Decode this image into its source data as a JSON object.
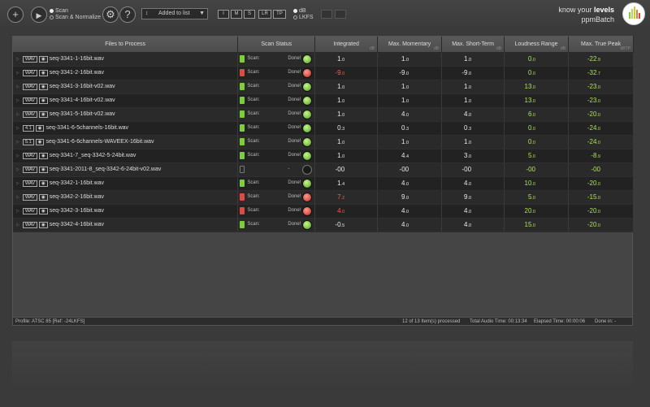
{
  "toolbar": {
    "add_icon": "plus-icon",
    "play_icon": "play-icon",
    "scan_options": [
      {
        "label": "Scan",
        "selected": true
      },
      {
        "label": "Scan & Normalize",
        "selected": false
      }
    ],
    "settings_icon": "gear-icon",
    "help_icon": "question-icon",
    "combo_value": "Added to list",
    "meter_buttons": [
      "I",
      "M",
      "S",
      "LR",
      "TP"
    ],
    "unit_options": [
      {
        "label": "dB",
        "selected": true
      },
      {
        "label": "LKFS",
        "selected": false
      }
    ],
    "brand_tagline_prefix": "know your",
    "brand_tagline_bold": "levels",
    "brand_name": "ppmBatch"
  },
  "table": {
    "headers": [
      {
        "label": "Files to Process",
        "unit": ""
      },
      {
        "label": "Scan Status",
        "unit": ""
      },
      {
        "label": "Integrated",
        "unit": "dB"
      },
      {
        "label": "Max. Momentary",
        "unit": "dB"
      },
      {
        "label": "Max. Short-Term",
        "unit": "dB"
      },
      {
        "label": "Loudness Range",
        "unit": "dB"
      },
      {
        "label": "Max. True Peak",
        "unit": "dBTP"
      }
    ],
    "rows": [
      {
        "fmt": "WAV",
        "file": "seq-3341-1-16bit.wav",
        "scan": "Scan:",
        "done": "Done!",
        "status": "green",
        "doc": "green",
        "integrated": [
          "1",
          ".0"
        ],
        "momentary": [
          "1",
          ".0"
        ],
        "shortterm": [
          "1",
          ".0"
        ],
        "range": [
          "0",
          ".0"
        ],
        "peak": [
          "-22",
          ".9"
        ],
        "c_int": "#e8e8e8"
      },
      {
        "fmt": "WAV",
        "file": "seq-3341-2-16bit.wav",
        "scan": "Scan:",
        "done": "Done!",
        "status": "red",
        "doc": "red",
        "integrated": [
          "-9",
          ".0"
        ],
        "momentary": [
          "-9",
          ".0"
        ],
        "shortterm": [
          "-9",
          ".0"
        ],
        "range": [
          "0",
          ".0"
        ],
        "peak": [
          "-32",
          ".7"
        ],
        "c_int": "#ff5a4a"
      },
      {
        "fmt": "WAV",
        "file": "seq-3341-3-16bit-v02.wav",
        "scan": "Scan:",
        "done": "Done!",
        "status": "green",
        "doc": "green",
        "integrated": [
          "1",
          ".0"
        ],
        "momentary": [
          "1",
          ".0"
        ],
        "shortterm": [
          "1",
          ".0"
        ],
        "range": [
          "13",
          ".0"
        ],
        "peak": [
          "-23",
          ".0"
        ],
        "c_int": "#e8e8e8"
      },
      {
        "fmt": "WAV",
        "file": "seq-3341-4-16bit-v02.wav",
        "scan": "Scan:",
        "done": "Done!",
        "status": "green",
        "doc": "green",
        "integrated": [
          "1",
          ".0"
        ],
        "momentary": [
          "1",
          ".0"
        ],
        "shortterm": [
          "1",
          ".0"
        ],
        "range": [
          "13",
          ".0"
        ],
        "peak": [
          "-23",
          ".0"
        ],
        "c_int": "#e8e8e8"
      },
      {
        "fmt": "WAV",
        "file": "seq-3341-5-16bit-v02.wav",
        "scan": "Scan:",
        "done": "Done!",
        "status": "green",
        "doc": "green",
        "integrated": [
          "1",
          ".0"
        ],
        "momentary": [
          "4",
          ".0"
        ],
        "shortterm": [
          "4",
          ".0"
        ],
        "range": [
          "6",
          ".0"
        ],
        "peak": [
          "-20",
          ".0"
        ],
        "c_int": "#e8e8e8"
      },
      {
        "fmt": "4.1",
        "file": "seq-3341-6-5channels-16bit.wav",
        "scan": "Scan:",
        "done": "Done!",
        "status": "green",
        "doc": "green",
        "integrated": [
          "0",
          ".3"
        ],
        "momentary": [
          "0",
          ".3"
        ],
        "shortterm": [
          "0",
          ".3"
        ],
        "range": [
          "0",
          ".0"
        ],
        "peak": [
          "-24",
          ".0"
        ],
        "c_int": "#e8e8e8"
      },
      {
        "fmt": "5.1",
        "file": "seq-3341-6-6channels-WAVEEX-16bit.wav",
        "scan": "Scan:",
        "done": "Done!",
        "status": "green",
        "doc": "green",
        "integrated": [
          "1",
          ".0"
        ],
        "momentary": [
          "1",
          ".0"
        ],
        "shortterm": [
          "1",
          ".0"
        ],
        "range": [
          "0",
          ".0"
        ],
        "peak": [
          "-24",
          ".0"
        ],
        "c_int": "#e8e8e8"
      },
      {
        "fmt": "WAV",
        "file": "seq-3341-7_seq-3342-5-24bit.wav",
        "scan": "Scan:",
        "done": "Done!",
        "status": "green",
        "doc": "green",
        "integrated": [
          "1",
          ".0"
        ],
        "momentary": [
          "4",
          ".4"
        ],
        "shortterm": [
          "3",
          ".0"
        ],
        "range": [
          "5",
          ".0"
        ],
        "peak": [
          "-8",
          ".9"
        ],
        "c_int": "#e8e8e8"
      },
      {
        "fmt": "WAV",
        "file": "seq-3341-2011-8_seq-3342-6-24bit-v02.wav",
        "scan": "",
        "done": "-",
        "status": "none",
        "doc": "none",
        "integrated": [
          "-00",
          ""
        ],
        "momentary": [
          "-00",
          ""
        ],
        "shortterm": [
          "-00",
          ""
        ],
        "range": [
          "-00",
          ""
        ],
        "peak": [
          "-00",
          ""
        ],
        "c_int": "#e8e8e8"
      },
      {
        "fmt": "WAV",
        "file": "seq-3342-1-16bit.wav",
        "scan": "Scan:",
        "done": "Done!",
        "status": "green",
        "doc": "green",
        "integrated": [
          "1",
          ".4"
        ],
        "momentary": [
          "4",
          ".0"
        ],
        "shortterm": [
          "4",
          ".0"
        ],
        "range": [
          "10",
          ".0"
        ],
        "peak": [
          "-20",
          ".0"
        ],
        "c_int": "#e8e8e8"
      },
      {
        "fmt": "WAV",
        "file": "seq-3342-2-16bit.wav",
        "scan": "Scan:",
        "done": "Done!",
        "status": "red",
        "doc": "red",
        "integrated": [
          "7",
          ".2"
        ],
        "momentary": [
          "9",
          ".0"
        ],
        "shortterm": [
          "9",
          ".0"
        ],
        "range": [
          "5",
          ".0"
        ],
        "peak": [
          "-15",
          ".0"
        ],
        "c_int": "#ff5a4a"
      },
      {
        "fmt": "WAV",
        "file": "seq-3342-3-16bit.wav",
        "scan": "Scan:",
        "done": "Done!",
        "status": "red",
        "doc": "red",
        "integrated": [
          "4",
          ".0"
        ],
        "momentary": [
          "4",
          ".0"
        ],
        "shortterm": [
          "4",
          ".0"
        ],
        "range": [
          "20",
          ".0"
        ],
        "peak": [
          "-20",
          ".0"
        ],
        "c_int": "#ff5a4a"
      },
      {
        "fmt": "WAV",
        "file": "seq-3342-4-16bit.wav",
        "scan": "Scan:",
        "done": "Done!",
        "status": "green",
        "doc": "green",
        "integrated": [
          "-0",
          ".5"
        ],
        "momentary": [
          "4",
          ".0"
        ],
        "shortterm": [
          "4",
          ".0"
        ],
        "range": [
          "15",
          ".0"
        ],
        "peak": [
          "-20",
          ".0"
        ],
        "c_int": "#e8e8e8"
      }
    ]
  },
  "status_bar": {
    "profile": "Profile: ATSC 85 [Ref: -24LKFS]",
    "processed": "12 of 13 Item(s) processed",
    "audio_time": "Total Audio Time: 00:13:34",
    "elapsed": "Elapsed Time: 00:00:06",
    "done_in": "Done in:   -"
  },
  "colors": {
    "green": "#7ccf3a",
    "red": "#e04a44",
    "accent_green": "#a8e05a"
  }
}
